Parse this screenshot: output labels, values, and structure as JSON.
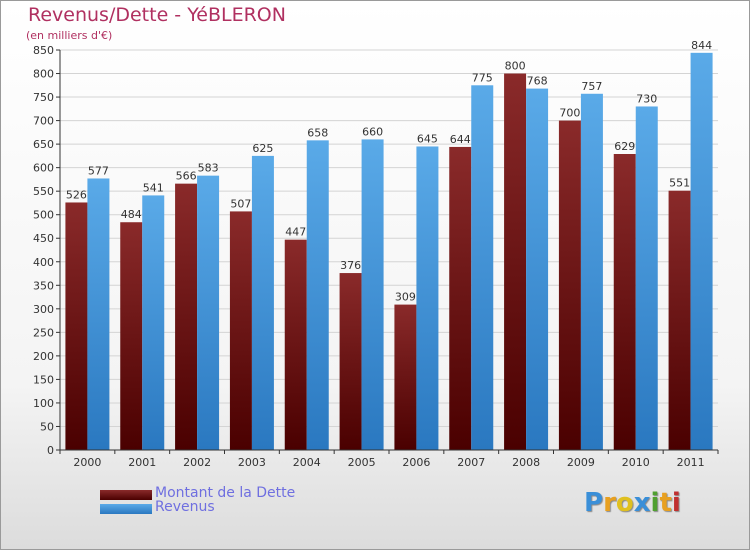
{
  "title": "Revenus/Dette - YéBLERON",
  "subtitle": "(en milliers d'€)",
  "logo": {
    "text": "Proxiti",
    "letters": [
      "P",
      "r",
      "o",
      "x",
      "i",
      "t",
      "i"
    ],
    "letter_colors": [
      "#3a8fd8",
      "#e8a020",
      "#e0c020",
      "#3a8fd8",
      "#50a030",
      "#e8a020",
      "#c03030"
    ]
  },
  "colors": {
    "dette": "#7a1a1a",
    "revenus": "#4a9de0"
  },
  "chart_data": {
    "type": "bar",
    "title": "Revenus/Dette - YéBLERON",
    "subtitle": "(en milliers d'€)",
    "categories": [
      "2000",
      "2001",
      "2002",
      "2003",
      "2004",
      "2005",
      "2006",
      "2007",
      "2008",
      "2009",
      "2010",
      "2011"
    ],
    "series": [
      {
        "name": "Montant de la Dette",
        "values": [
          526,
          484,
          566,
          507,
          447,
          376,
          309,
          644,
          800,
          700,
          629,
          551
        ]
      },
      {
        "name": "Revenus",
        "values": [
          577,
          541,
          583,
          625,
          658,
          660,
          645,
          775,
          768,
          757,
          730,
          844
        ]
      }
    ],
    "yticks": [
      "0",
      "50",
      "100",
      "150",
      "200",
      "250",
      "300",
      "350",
      "400",
      "450",
      "500",
      "550",
      "600",
      "650",
      "700",
      "750",
      "800",
      "850"
    ],
    "ylim": [
      0,
      850
    ],
    "grid": true,
    "legend_position": "bottom-left"
  }
}
